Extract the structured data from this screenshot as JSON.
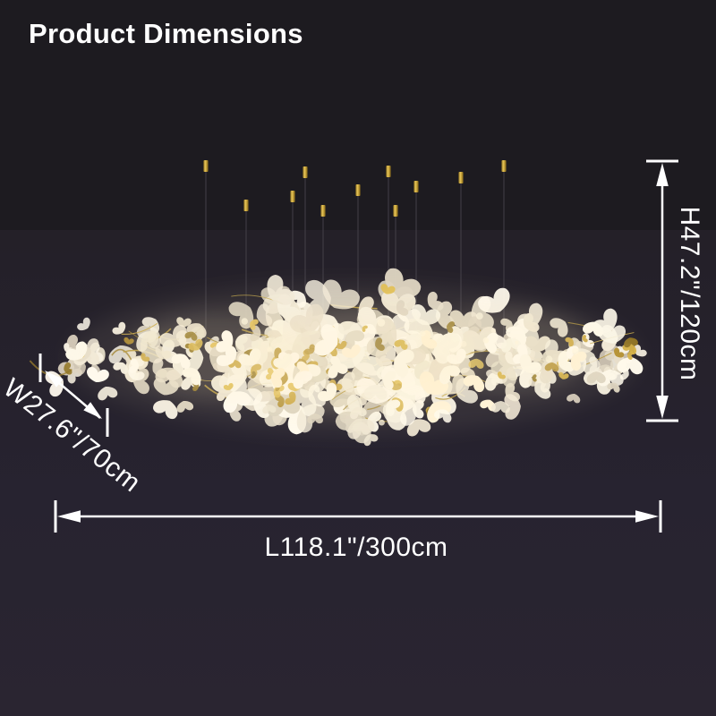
{
  "page": {
    "title": "Product Dimensions"
  },
  "product": {
    "description": "gold-branch chandelier with white ginkgo leaf shades hanging from thin wires"
  },
  "suspension": {
    "visible_hanger_count": 11
  },
  "dimensions": {
    "height": {
      "label": "H47.2\"/120cm",
      "inches": 47.2,
      "cm": 120
    },
    "width": {
      "label": "W27.6\"/70cm",
      "inches": 27.6,
      "cm": 70
    },
    "length": {
      "label": "L118.1\"/300cm",
      "inches": 118.1,
      "cm": 300
    }
  },
  "colors": {
    "background_top": "#1d1b20",
    "background_bottom": "#2a2531",
    "annotation": "#ffffff",
    "gold": "#c9a43e",
    "petal_white": "#f4edda",
    "wire": "#45414a",
    "glow": "#ffeec2"
  }
}
